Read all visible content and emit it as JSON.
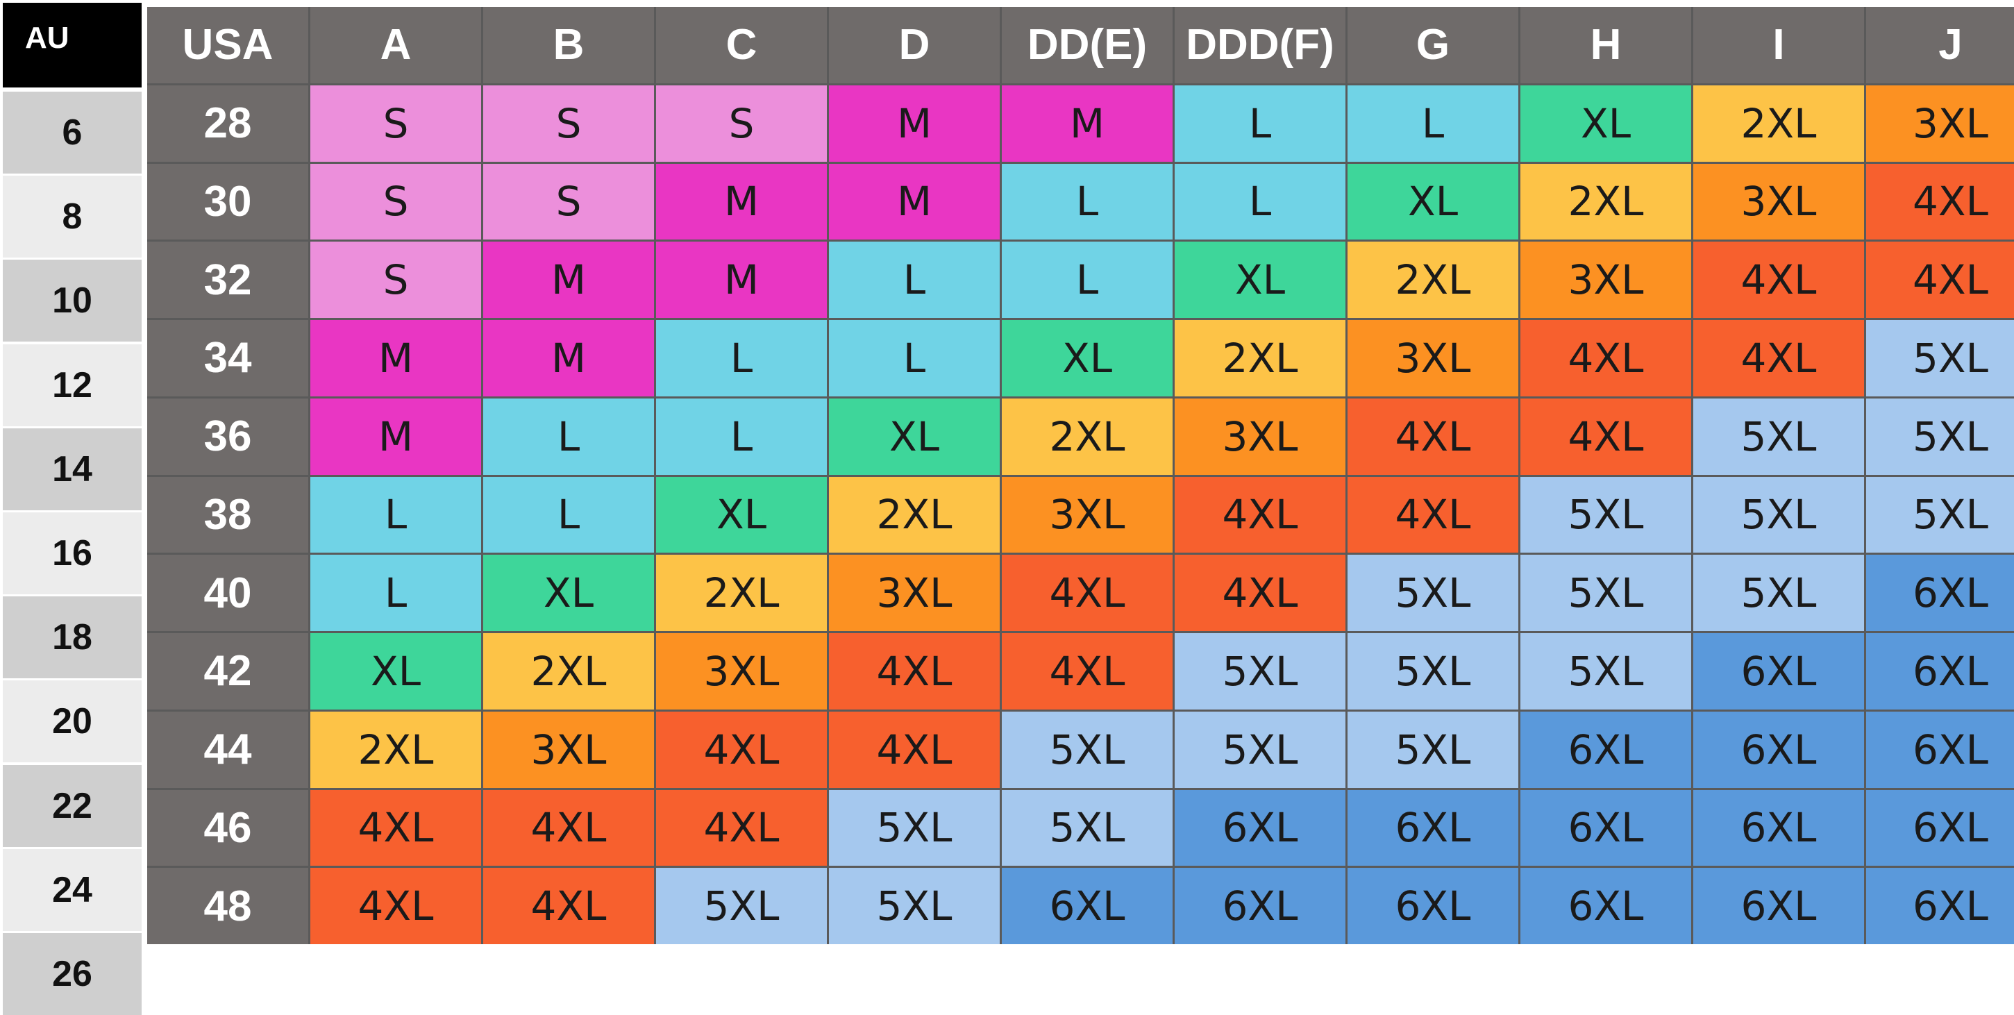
{
  "au": {
    "header": "AU",
    "sizes": [
      "6",
      "8",
      "10",
      "12",
      "14",
      "16",
      "18",
      "20",
      "22",
      "24",
      "26"
    ],
    "row_colors": [
      "#cfcfcf",
      "#ececec",
      "#cfcfcf",
      "#ececec",
      "#cfcfcf",
      "#ececec",
      "#cfcfcf",
      "#ececec",
      "#cfcfcf",
      "#ececec",
      "#cfcfcf"
    ]
  },
  "table": {
    "corner": "USA",
    "cups": [
      "A",
      "B",
      "C",
      "D",
      "DD(E)",
      "DDD(F)",
      "G",
      "H",
      "I",
      "J"
    ],
    "bands": [
      "28",
      "30",
      "32",
      "34",
      "36",
      "38",
      "40",
      "42",
      "44",
      "46",
      "48"
    ],
    "rows": [
      [
        "S",
        "S",
        "S",
        "M",
        "M",
        "L",
        "L",
        "XL",
        "2XL",
        "3XL"
      ],
      [
        "S",
        "S",
        "M",
        "M",
        "L",
        "L",
        "XL",
        "2XL",
        "3XL",
        "4XL"
      ],
      [
        "S",
        "M",
        "M",
        "L",
        "L",
        "XL",
        "2XL",
        "3XL",
        "4XL",
        "4XL"
      ],
      [
        "M",
        "M",
        "L",
        "L",
        "XL",
        "2XL",
        "3XL",
        "4XL",
        "4XL",
        "5XL"
      ],
      [
        "M",
        "L",
        "L",
        "XL",
        "2XL",
        "3XL",
        "4XL",
        "4XL",
        "5XL",
        "5XL"
      ],
      [
        "L",
        "L",
        "XL",
        "2XL",
        "3XL",
        "4XL",
        "4XL",
        "5XL",
        "5XL",
        "5XL"
      ],
      [
        "L",
        "XL",
        "2XL",
        "3XL",
        "4XL",
        "4XL",
        "5XL",
        "5XL",
        "5XL",
        "6XL"
      ],
      [
        "XL",
        "2XL",
        "3XL",
        "4XL",
        "4XL",
        "5XL",
        "5XL",
        "5XL",
        "6XL",
        "6XL"
      ],
      [
        "2XL",
        "3XL",
        "4XL",
        "4XL",
        "5XL",
        "5XL",
        "5XL",
        "6XL",
        "6XL",
        "6XL"
      ],
      [
        "4XL",
        "4XL",
        "4XL",
        "5XL",
        "5XL",
        "6XL",
        "6XL",
        "6XL",
        "6XL",
        "6XL"
      ],
      [
        "4XL",
        "4XL",
        "5XL",
        "5XL",
        "6XL",
        "6XL",
        "6XL",
        "6XL",
        "6XL",
        "6XL"
      ]
    ]
  },
  "size_colors": {
    "S": "#ec8fdb",
    "M": "#e936c3",
    "L": "#70d3e6",
    "XL": "#3ed69a",
    "2XL": "#fdc347",
    "3XL": "#fc9122",
    "4XL": "#f7602e",
    "5XL": "#a5c8ee",
    "6XL": "#5a99db"
  },
  "header_color": "#6f6b6a"
}
